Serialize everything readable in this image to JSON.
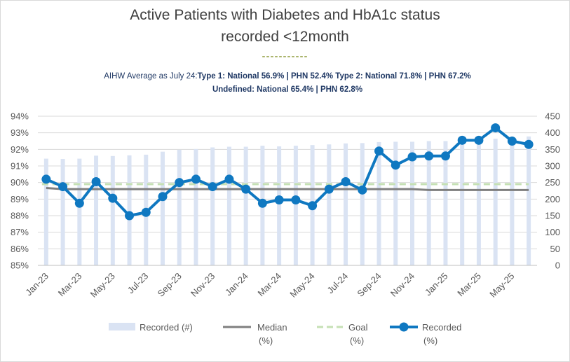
{
  "title_line1": "Active Patients with Diabetes and HbA1c status",
  "title_line2": "recorded <12month",
  "title_rule": "-----------",
  "subtitle": {
    "prefix": "AIHW Average as July 24:",
    "line1_bold": "Type 1: National 56.9% | PHN 52.4% Type 2: National 71.8% | PHN 67.2%",
    "line2": "Undefined: National 65.4% | PHN 62.8%"
  },
  "colors": {
    "bars": "#dae3f3",
    "median": "#7f7f7f",
    "goal": "#c5e0b4",
    "recorded_line": "#0f78c1",
    "axis_text": "#595959",
    "grid": "#d9d9d9"
  },
  "chart_data": {
    "type": "bar+line",
    "grid": true,
    "legend_position": "bottom",
    "left_axis": {
      "ylim": [
        85,
        94
      ],
      "ticks": [
        "85%",
        "86%",
        "87%",
        "88%",
        "89%",
        "90%",
        "91%",
        "92%",
        "93%",
        "94%"
      ]
    },
    "right_axis": {
      "ylim": [
        0,
        450
      ],
      "ticks": [
        "0",
        "50",
        "100",
        "150",
        "200",
        "250",
        "300",
        "350",
        "400",
        "450"
      ]
    },
    "x_tick_labels": [
      "Jan-23",
      "Mar-23",
      "May-23",
      "Jul-23",
      "Sep-23",
      "Nov-23",
      "Jan-24",
      "Mar-24",
      "May-24",
      "Jul-24",
      "Sep-24",
      "Nov-24",
      "Jan-25",
      "Mar-25",
      "May-25"
    ],
    "categories": [
      "Jan-23",
      "Feb-23",
      "Mar-23",
      "Apr-23",
      "May-23",
      "Jun-23",
      "Jul-23",
      "Aug-23",
      "Sep-23",
      "Oct-23",
      "Nov-23",
      "Dec-23",
      "Jan-24",
      "Feb-24",
      "Mar-24",
      "Apr-24",
      "May-24",
      "Jun-24",
      "Jul-24",
      "Aug-24",
      "Sep-24",
      "Oct-24",
      "Nov-24",
      "Dec-24",
      "Jan-25",
      "Feb-25",
      "Mar-25",
      "Apr-25",
      "May-25",
      "Jun-25"
    ],
    "series": [
      {
        "name": "Recorded (#)",
        "kind": "bar",
        "axis": "right",
        "values": [
          322,
          321,
          322,
          331,
          330,
          332,
          334,
          343,
          349,
          351,
          356,
          358,
          358,
          361,
          359,
          361,
          363,
          365,
          368,
          369,
          372,
          373,
          373,
          375,
          375,
          377,
          378,
          382,
          380,
          389
        ]
      },
      {
        "name": "Median\n(%)",
        "kind": "line",
        "axis": "left",
        "values": [
          89.67,
          89.6,
          89.6,
          89.6,
          89.6,
          89.6,
          89.6,
          89.6,
          89.6,
          89.6,
          89.6,
          89.6,
          89.6,
          89.6,
          89.6,
          89.6,
          89.6,
          89.6,
          89.6,
          89.6,
          89.6,
          89.6,
          89.6,
          89.55,
          89.55,
          89.55,
          89.55,
          89.55,
          89.55,
          89.55
        ]
      },
      {
        "name": "Goal\n(%)",
        "kind": "dashed-line",
        "axis": "left",
        "values": [
          89.9,
          89.9,
          89.9,
          89.9,
          89.9,
          89.9,
          89.9,
          89.9,
          89.9,
          89.9,
          89.9,
          89.9,
          89.9,
          89.9,
          89.9,
          89.9,
          89.9,
          89.9,
          89.9,
          89.9,
          89.9,
          89.9,
          89.9,
          89.9,
          89.9,
          89.9,
          89.9,
          89.9,
          89.9,
          89.9
        ]
      },
      {
        "name": "Recorded\n(%)",
        "kind": "line-marker",
        "axis": "left",
        "values": [
          90.2,
          89.75,
          88.75,
          90.05,
          89.05,
          88.0,
          88.2,
          89.15,
          90.0,
          90.2,
          89.75,
          90.2,
          89.6,
          88.75,
          88.95,
          88.95,
          88.6,
          89.6,
          90.05,
          89.55,
          91.9,
          91.05,
          91.55,
          91.6,
          91.6,
          92.55,
          92.55,
          93.3,
          92.5,
          92.3
        ]
      }
    ]
  }
}
